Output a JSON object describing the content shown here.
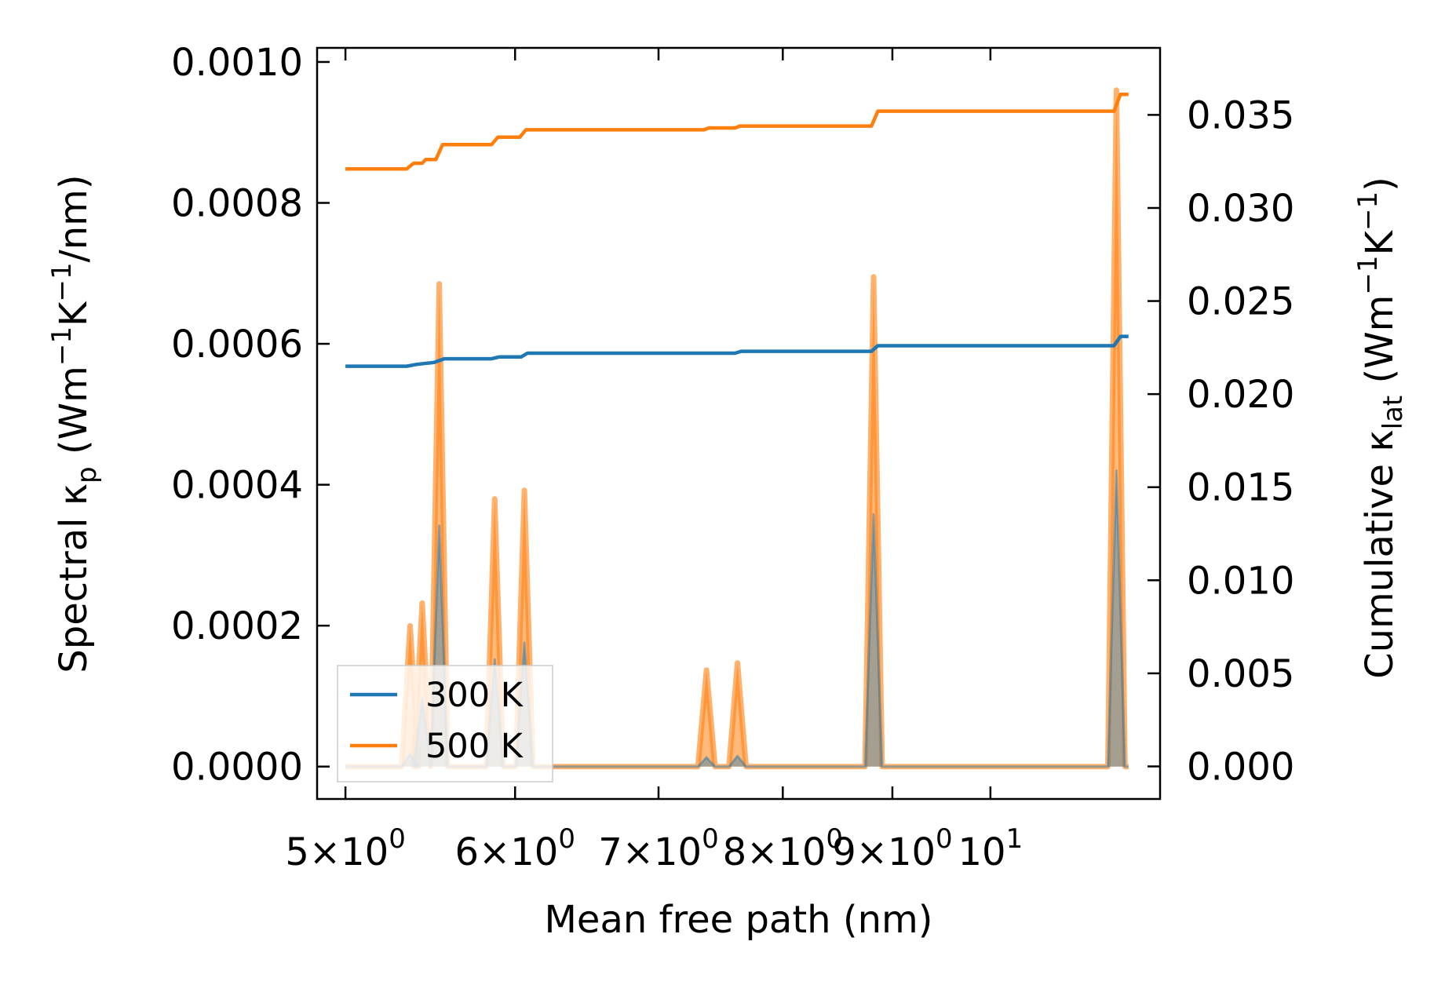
{
  "chart_data": {
    "type": "line",
    "xscale": "log",
    "xlabel": "Mean free path (nm)",
    "xlim": [
      4.85,
      12.0
    ],
    "x_ticks": [
      {
        "value": 5,
        "mantissa": "5",
        "times": "×",
        "base": "10",
        "exp": "0"
      },
      {
        "value": 6,
        "mantissa": "6",
        "times": "×",
        "base": "10",
        "exp": "0"
      },
      {
        "value": 7,
        "mantissa": "7",
        "times": "×",
        "base": "10",
        "exp": "0"
      },
      {
        "value": 8,
        "mantissa": "8",
        "times": "×",
        "base": "10",
        "exp": "0"
      },
      {
        "value": 9,
        "mantissa": "9",
        "times": "×",
        "base": "10",
        "exp": "0"
      },
      {
        "value": 10,
        "mantissa": "",
        "times": "",
        "base": "10",
        "exp": "1"
      }
    ],
    "left_axis": {
      "label": {
        "pre": "Spectral κ",
        "sub": "p",
        "mid1": " (Wm",
        "sup1": "−1",
        "mid2": "K",
        "sup2": "−1",
        "post": "/nm)"
      },
      "ylim": [
        -4.6e-05,
        0.00102
      ],
      "ticks": [
        0.0,
        0.0002,
        0.0004,
        0.0006,
        0.0008,
        0.001
      ],
      "tick_labels": [
        "0.0000",
        "0.0002",
        "0.0004",
        "0.0006",
        "0.0008",
        "0.0010"
      ]
    },
    "right_axis": {
      "label": {
        "pre": "Cumulative κ",
        "sub": "lat",
        "mid1": " (Wm",
        "sup1": "−1",
        "mid2": "K",
        "sup2": "−1",
        "post": ")"
      },
      "ylim": [
        -0.00175,
        0.0386
      ],
      "ticks": [
        0.0,
        0.005,
        0.01,
        0.015,
        0.02,
        0.025,
        0.03,
        0.035
      ],
      "tick_labels": [
        "0.000",
        "0.005",
        "0.010",
        "0.015",
        "0.020",
        "0.025",
        "0.030",
        "0.035"
      ]
    },
    "series": [
      {
        "name": "300 K",
        "color": "#1f77b4",
        "spectral_peaks": [
          [
            5.36,
            1.8e-05
          ],
          [
            5.43,
            9.7e-05
          ],
          [
            5.53,
            0.000342
          ],
          [
            5.87,
            0.000152
          ],
          [
            6.06,
            0.000176
          ],
          [
            7.37,
            1.3e-05
          ],
          [
            7.62,
            1.5e-05
          ],
          [
            8.82,
            0.000358
          ],
          [
            11.45,
            0.00042
          ]
        ],
        "cumulative": [
          [
            5.0,
            0.0215
          ],
          [
            5.34,
            0.0215
          ],
          [
            5.4,
            0.0216
          ],
          [
            5.5,
            0.0217
          ],
          [
            5.56,
            0.0219
          ],
          [
            5.85,
            0.0219
          ],
          [
            5.9,
            0.022
          ],
          [
            6.04,
            0.022
          ],
          [
            6.08,
            0.0222
          ],
          [
            7.35,
            0.0222
          ],
          [
            7.4,
            0.0222
          ],
          [
            7.6,
            0.0222
          ],
          [
            7.65,
            0.0223
          ],
          [
            8.8,
            0.0223
          ],
          [
            8.86,
            0.0226
          ],
          [
            11.42,
            0.0226
          ],
          [
            11.5,
            0.0231
          ],
          [
            11.6,
            0.0231
          ]
        ]
      },
      {
        "name": "500 K",
        "color": "#ff7f0e",
        "spectral_peaks": [
          [
            5.36,
            0.0002
          ],
          [
            5.43,
            0.000232
          ],
          [
            5.53,
            0.000685
          ],
          [
            5.87,
            0.00038
          ],
          [
            6.06,
            0.000392
          ],
          [
            7.37,
            0.000137
          ],
          [
            7.62,
            0.000147
          ],
          [
            8.82,
            0.000695
          ],
          [
            11.45,
            0.00096
          ]
        ],
        "cumulative": [
          [
            5.0,
            0.0321
          ],
          [
            5.34,
            0.0321
          ],
          [
            5.38,
            0.0324
          ],
          [
            5.43,
            0.0324
          ],
          [
            5.45,
            0.0326
          ],
          [
            5.51,
            0.0326
          ],
          [
            5.55,
            0.0334
          ],
          [
            5.85,
            0.0334
          ],
          [
            5.89,
            0.0338
          ],
          [
            6.03,
            0.0338
          ],
          [
            6.07,
            0.0342
          ],
          [
            7.35,
            0.0342
          ],
          [
            7.39,
            0.0343
          ],
          [
            7.6,
            0.0343
          ],
          [
            7.64,
            0.0344
          ],
          [
            8.8,
            0.0344
          ],
          [
            8.86,
            0.0352
          ],
          [
            11.42,
            0.0352
          ],
          [
            11.5,
            0.0361
          ],
          [
            11.6,
            0.0361
          ]
        ]
      }
    ],
    "legend": {
      "position": "lower-left",
      "entries": [
        "300 K",
        "500 K"
      ]
    }
  }
}
